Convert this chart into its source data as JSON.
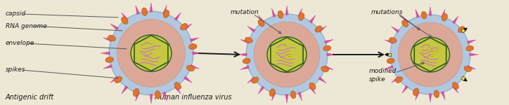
{
  "background_color": "#ede8d5",
  "title_left": "Antigenic drift",
  "title_mid": "Human influenza virus",
  "label_mutation": "mutation",
  "label_mutations": "mutations",
  "label_modified": "modified\nspike",
  "arrow_color": "#1a1a1a",
  "text_color": "#1a1a1a",
  "font_size": 6.5,
  "font_size_title": 7.0,
  "colors": {
    "outer_ring_light": "#c8daea",
    "outer_ring_dark": "#8aacc8",
    "outer_ring_mid": "#b0c8e0",
    "pink_body": "#dba898",
    "capsid_border": "#2a5a2a",
    "capsid_fill": "#c8c840",
    "capsid_inner": "#d8d860",
    "rna_color": "#c878b8",
    "spike_pink": "#cc5599",
    "spike_magenta": "#dd44aa",
    "blob_orange": "#cc5510",
    "blob_orange2": "#dd7730",
    "mutation_yellow": "#e8e040",
    "spike_yellow_dark": "#ccaa00",
    "spike_black": "#111111",
    "line_color": "#555555"
  }
}
